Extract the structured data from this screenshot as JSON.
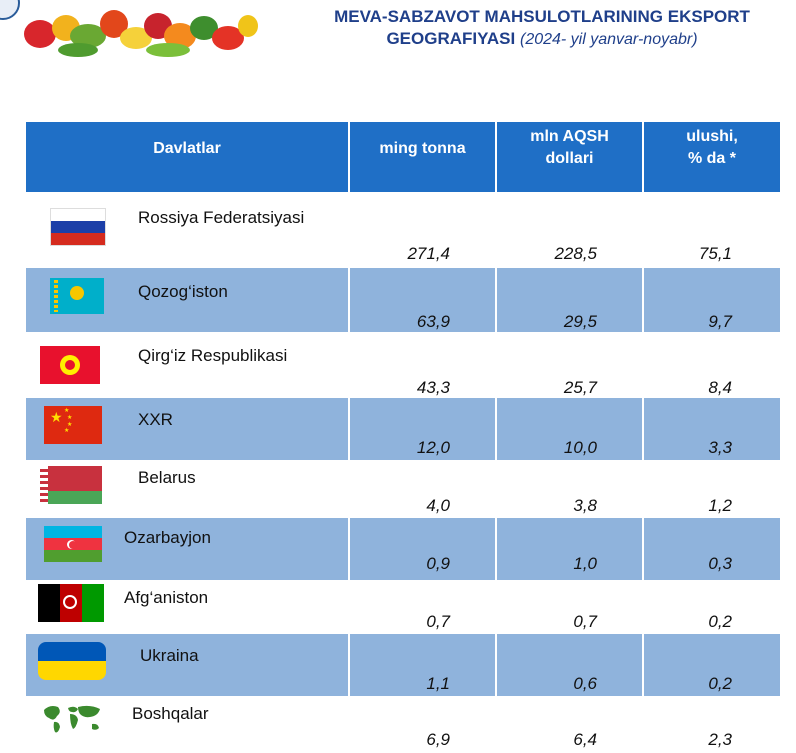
{
  "title": {
    "line1": "MEVA-SABZAVOT MAHSULOTLARINING EKSPORT",
    "line2": "GEOGRAFIYASI",
    "period": "(2024- yil yanvar-noyabr)"
  },
  "table": {
    "headers": {
      "country": "Davlatlar",
      "tonnes": "ming tonna",
      "usd_l1": "mln AQSH",
      "usd_l2": "dollari",
      "share_l1": "ulushi,",
      "share_l2": "% da *"
    },
    "rows": [
      {
        "country": "Rossiya Federatsiyasi",
        "flag": "russia-flag",
        "tonnes": "271,4",
        "usd": "228,5",
        "share": "75,1"
      },
      {
        "country": "Qozog‘iston",
        "flag": "kazakhstan-flag",
        "tonnes": "63,9",
        "usd": "29,5",
        "share": "9,7"
      },
      {
        "country": "Qirg‘iz Respublikasi",
        "flag": "kyrgyzstan-flag",
        "tonnes": "43,3",
        "usd": "25,7",
        "share": "8,4"
      },
      {
        "country": "XXR",
        "flag": "china-flag",
        "tonnes": "12,0",
        "usd": "10,0",
        "share": "3,3"
      },
      {
        "country": "Belarus",
        "flag": "belarus-flag",
        "tonnes": "4,0",
        "usd": "3,8",
        "share": "1,2"
      },
      {
        "country": "Ozarbayjon",
        "flag": "azerbaijan-flag",
        "tonnes": "0,9",
        "usd": "1,0",
        "share": "0,3"
      },
      {
        "country": "Afg‘aniston",
        "flag": "afghanistan-flag",
        "tonnes": "0,7",
        "usd": "0,7",
        "share": "0,2"
      },
      {
        "country": "Ukraina",
        "flag": "ukraine-flag",
        "tonnes": "1,1",
        "usd": "0,6",
        "share": "0,2"
      },
      {
        "country": "Boshqalar",
        "flag": "world-map-icon",
        "tonnes": "6,9",
        "usd": "6,4",
        "share": "2,3"
      }
    ]
  },
  "colors": {
    "header": "#1f6fc6",
    "stripe": "#8fb3dc",
    "title": "#1f3f8a"
  }
}
